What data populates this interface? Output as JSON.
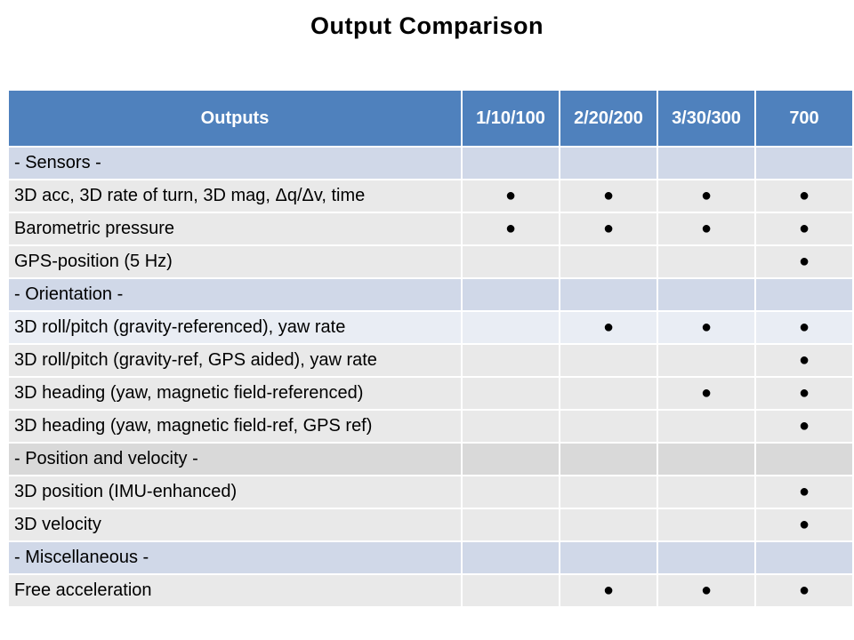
{
  "title": "Output Comparison",
  "table": {
    "headers": [
      "Outputs",
      "1/10/100",
      "2/20/200",
      "3/30/300",
      "700"
    ],
    "rows": [
      {
        "label": "- Sensors -",
        "type": "section-blue",
        "marks": [
          "",
          "",
          "",
          ""
        ]
      },
      {
        "label": "3D acc, 3D rate of turn, 3D mag, Δq/Δv, time",
        "type": "row-b",
        "marks": [
          "●",
          "●",
          "●",
          "●"
        ]
      },
      {
        "label": "Barometric pressure",
        "type": "row-b",
        "marks": [
          "●",
          "●",
          "●",
          "●"
        ]
      },
      {
        "label": "GPS-position (5 Hz)",
        "type": "row-b",
        "marks": [
          "",
          "",
          "",
          "●"
        ]
      },
      {
        "label": "- Orientation -",
        "type": "section-blue",
        "marks": [
          "",
          "",
          "",
          ""
        ]
      },
      {
        "label": "3D roll/pitch (gravity-referenced), yaw rate",
        "type": "row-a",
        "marks": [
          "",
          "●",
          "●",
          "●"
        ]
      },
      {
        "label": "3D roll/pitch (gravity-ref, GPS aided), yaw rate",
        "type": "row-b",
        "marks": [
          "",
          "",
          "",
          "●"
        ]
      },
      {
        "label": "3D heading (yaw, magnetic field-referenced)",
        "type": "row-b",
        "marks": [
          "",
          "",
          "●",
          "●"
        ]
      },
      {
        "label": "3D heading (yaw, magnetic field-ref, GPS ref)",
        "type": "row-b",
        "marks": [
          "",
          "",
          "",
          "●"
        ]
      },
      {
        "label": "- Position and velocity -",
        "type": "section-gray",
        "marks": [
          "",
          "",
          "",
          ""
        ]
      },
      {
        "label": "3D position (IMU-enhanced)",
        "type": "row-b",
        "marks": [
          "",
          "",
          "",
          "●"
        ]
      },
      {
        "label": "3D velocity",
        "type": "row-b",
        "marks": [
          "",
          "",
          "",
          "●"
        ]
      },
      {
        "label": "- Miscellaneous -",
        "type": "section-blue",
        "marks": [
          "",
          "",
          "",
          ""
        ]
      },
      {
        "label": "Free acceleration",
        "type": "row-b",
        "marks": [
          "",
          "●",
          "●",
          "●"
        ]
      }
    ]
  },
  "colors": {
    "header_bg": "#4f81bd",
    "section_blue": "#d0d8e8",
    "section_gray": "#d9d9d9",
    "row_light_blue": "#e9edf4",
    "row_light_gray": "#e9e9e9"
  }
}
